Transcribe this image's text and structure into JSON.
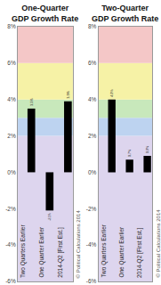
{
  "chart_data": [
    {
      "type": "bar",
      "title": "One-Quarter\nGDP Growth Rate",
      "categories": [
        "Two Quarters Earlier",
        "One Quarter Earlier",
        "2014-Q2 [First Est.]"
      ],
      "values": [
        3.5,
        -2.1,
        3.9
      ],
      "value_labels": [
        "3.5%",
        "-2.1%",
        "3.9%"
      ],
      "color": "#000000",
      "data_labels": true,
      "grid": false,
      "ylim": [
        -6,
        8
      ],
      "yticks": [
        {
          "value": -6,
          "label": "-6%"
        },
        {
          "value": -4,
          "label": "-4%"
        },
        {
          "value": -2,
          "label": "-2%"
        },
        {
          "value": 0,
          "label": "0%"
        },
        {
          "value": 2,
          "label": "2%"
        },
        {
          "value": 4,
          "label": "4%"
        },
        {
          "value": 6,
          "label": "6%"
        },
        {
          "value": 8,
          "label": "8%"
        }
      ],
      "bands": [
        {
          "from": -6,
          "to": 2,
          "color": "#ddd5ee"
        },
        {
          "from": 2,
          "to": 3,
          "color": "#bdd3f0"
        },
        {
          "from": 3,
          "to": 4,
          "color": "#c8e8bb"
        },
        {
          "from": 4,
          "to": 6,
          "color": "#f6f2a6"
        },
        {
          "from": 6,
          "to": 8,
          "color": "#f4c7c7"
        }
      ],
      "annotations": [
        "© Political Calculations 2014"
      ]
    },
    {
      "type": "bar",
      "title": "Two-Quarter\nGDP Growth Rate",
      "categories": [
        "Two Quarters Earlier",
        "One Quarter Earlier",
        "2014-Q2 [First Est.]"
      ],
      "values": [
        4.0,
        0.7,
        0.9
      ],
      "value_labels": [
        "4.0%",
        "0.7%",
        "0.9%"
      ],
      "color": "#000000",
      "data_labels": true,
      "grid": false,
      "ylim": [
        -6,
        8
      ],
      "yticks": [
        {
          "value": -6,
          "label": "-6%"
        },
        {
          "value": -4,
          "label": "-4%"
        },
        {
          "value": -2,
          "label": "-2%"
        },
        {
          "value": 0,
          "label": "0%"
        },
        {
          "value": 2,
          "label": "2%"
        },
        {
          "value": 4,
          "label": "4%"
        },
        {
          "value": 6,
          "label": "6%"
        },
        {
          "value": 8,
          "label": "8%"
        }
      ],
      "bands": [
        {
          "from": -6,
          "to": 2,
          "color": "#ddd5ee"
        },
        {
          "from": 2,
          "to": 3,
          "color": "#bdd3f0"
        },
        {
          "from": 3,
          "to": 4,
          "color": "#c8e8bb"
        },
        {
          "from": 4,
          "to": 6,
          "color": "#f6f2a6"
        },
        {
          "from": 6,
          "to": 8,
          "color": "#f4c7c7"
        }
      ],
      "annotations": [
        "© Political Calculations 2014"
      ]
    }
  ]
}
